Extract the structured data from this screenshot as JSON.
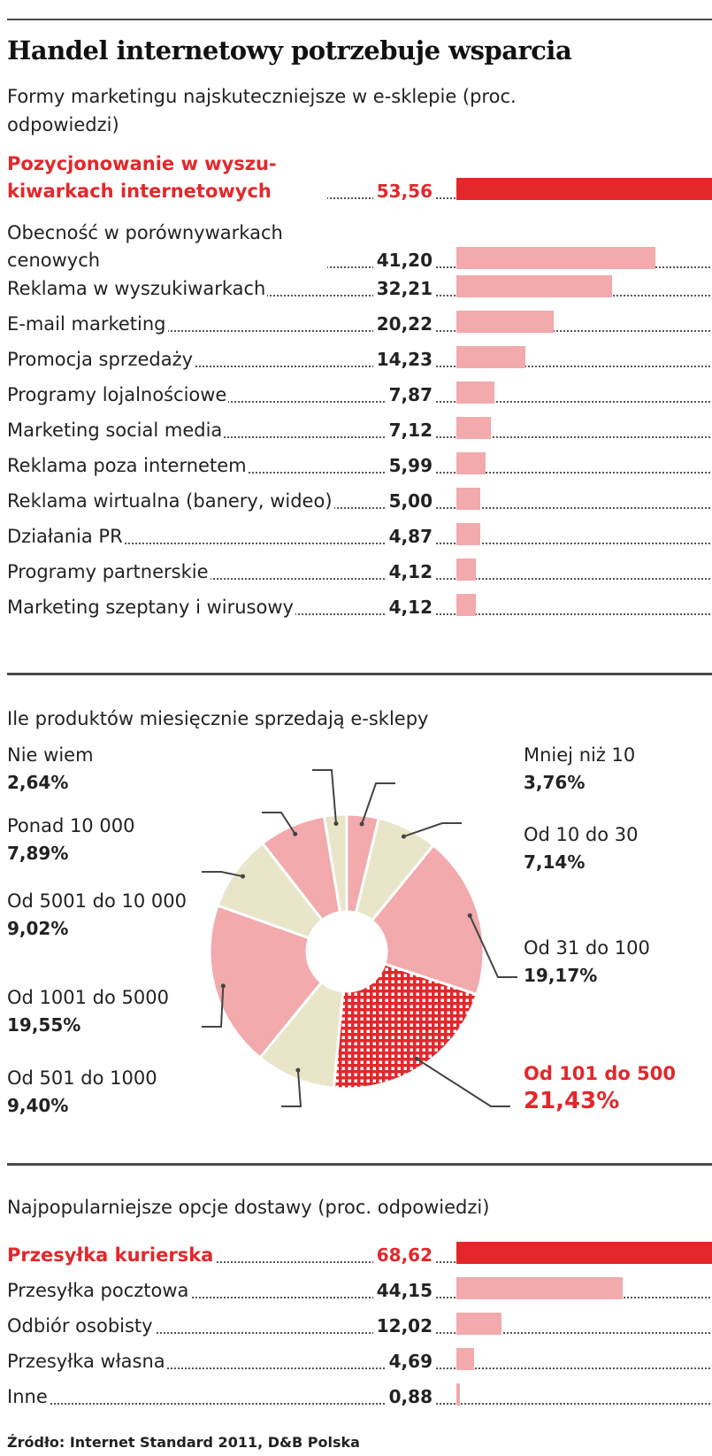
{
  "title": "Handel internetowy potrzebuje wsparcia",
  "sections": [
    {
      "subtitle": "Formy marketingu najskuteczniejsze w e-sklepie (proc. odpowiedzi)"
    },
    {
      "subtitle": "Ile produktów miesięcznie sprzedają e-sklepy"
    },
    {
      "subtitle": "Najpopularniejsze opcje dostawy (proc. odpowiedzi)"
    }
  ],
  "chart_data": [
    {
      "type": "bar",
      "title": "Formy marketingu najskuteczniejsze w e-sklepie (proc. odpowiedzi)",
      "orientation": "horizontal",
      "categories": [
        "Pozycjonowanie w wyszukiwarkach internetowych",
        "Obecność w porównywarkach cenowych",
        "Reklama w wyszukiwarkach",
        "E-mail marketing",
        "Promocja sprzedaży",
        "Programy lojalnościowe",
        "Marketing social media",
        "Reklama poza internetem",
        "Reklama wirtualna (banery, wideo)",
        "Działania PR",
        "Programy partnerskie",
        "Marketing szeptany i wirusowy"
      ],
      "display_labels": [
        "Pozycjonowanie w wyszu-kiwarkach internetowych",
        "Obecność w porównywarkach cenowych",
        "Reklama w wyszukiwarkach",
        "E-mail marketing",
        "Promocja sprzedaży",
        "Programy lojalnościowe",
        "Marketing social media",
        "Reklama poza internetem",
        "Reklama wirtualna (banery, wideo)",
        "Działania PR",
        "Programy partnerskie",
        "Marketing szeptany i wirusowy"
      ],
      "values": [
        53.56,
        41.2,
        32.21,
        20.22,
        14.23,
        7.87,
        7.12,
        5.99,
        5.0,
        4.87,
        4.12,
        4.12
      ],
      "value_labels": [
        "53,56",
        "41,20",
        "32,21",
        "20,22",
        "14,23",
        "7,87",
        "7,12",
        "5,99",
        "5,00",
        "4,87",
        "4,12",
        "4,12"
      ],
      "highlight_index": 0,
      "colors": {
        "highlight": "#e3272b",
        "normal": "#f2aaad"
      }
    },
    {
      "type": "pie",
      "title": "Ile produktów miesięcznie sprzedają e-sklepy",
      "donut": true,
      "slices": [
        {
          "label": "Mniej niż 10",
          "value": 3.76,
          "value_label": "3,76%",
          "color": "#f2aaad"
        },
        {
          "label": "Od 10 do 30",
          "value": 7.14,
          "value_label": "7,14%",
          "color": "#e9e5c9"
        },
        {
          "label": "Od 31 do 100",
          "value": 19.17,
          "value_label": "19,17%",
          "color": "#f2aaad"
        },
        {
          "label": "Od 101 do 500",
          "value": 21.43,
          "value_label": "21,43%",
          "color": "#e3272b",
          "pattern": "grid",
          "highlight": true
        },
        {
          "label": "Od 501 do 1000",
          "value": 9.4,
          "value_label": "9,40%",
          "color": "#e9e5c9"
        },
        {
          "label": "Od 1001 do 5000",
          "value": 19.55,
          "value_label": "19,55%",
          "color": "#f2aaad"
        },
        {
          "label": "Od 5001 do 10 000",
          "value": 9.02,
          "value_label": "9,02%",
          "color": "#e9e5c9"
        },
        {
          "label": "Ponad 10 000",
          "value": 7.89,
          "value_label": "7,89%",
          "color": "#f2aaad"
        },
        {
          "label": "Nie wiem",
          "value": 2.64,
          "value_label": "2,64%",
          "color": "#e9e5c9"
        }
      ]
    },
    {
      "type": "bar",
      "title": "Najpopularniejsze opcje dostawy (proc. odpowiedzi)",
      "orientation": "horizontal",
      "categories": [
        "Przesyłka kurierska",
        "Przesyłka pocztowa",
        "Odbiór osobisty",
        "Przesyłka własna",
        "Inne"
      ],
      "values": [
        68.62,
        44.15,
        12.02,
        4.69,
        0.88
      ],
      "value_labels": [
        "68,62",
        "44,15",
        "12,02",
        "4,69",
        "0,88"
      ],
      "highlight_index": 0,
      "colors": {
        "highlight": "#e3272b",
        "normal": "#f2aaad"
      }
    }
  ],
  "source": "Źródło: Internet Standard 2011, D&B Polska"
}
